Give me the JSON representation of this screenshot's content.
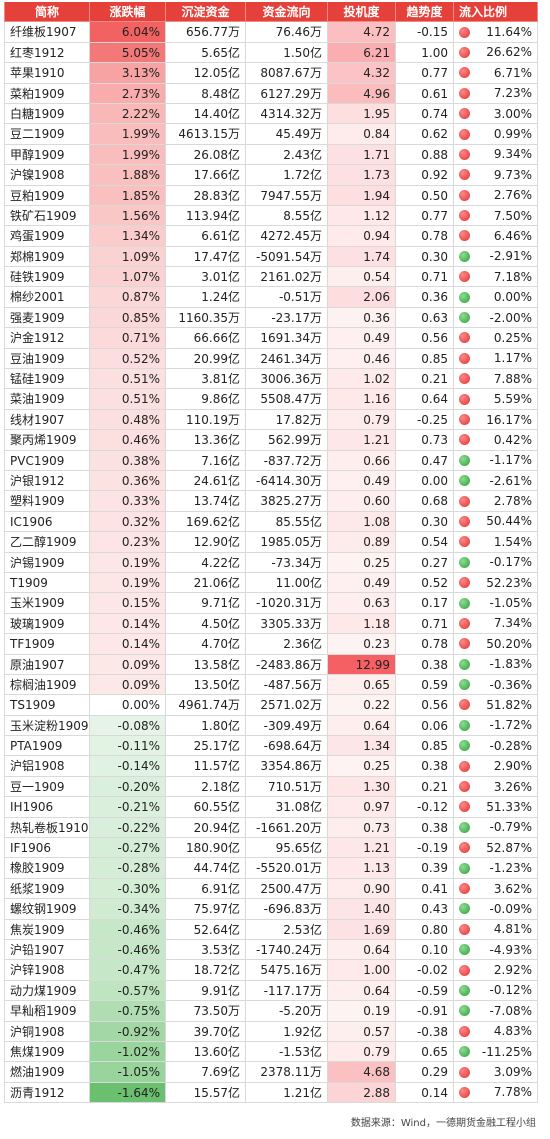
{
  "header": {
    "columns": [
      "简称",
      "涨跌幅",
      "沉淀资金",
      "资金流向",
      "投机度",
      "趋势度",
      "流入比例"
    ]
  },
  "table": {
    "rows": [
      [
        "纤维板1907",
        "6.04%",
        "656.77万",
        "76.46万",
        "4.72",
        "-0.15",
        "11.64%"
      ],
      [
        "红枣1912",
        "5.05%",
        "5.65亿",
        "1.50亿",
        "6.21",
        "1.00",
        "26.62%"
      ],
      [
        "苹果1910",
        "3.13%",
        "12.05亿",
        "8087.67万",
        "4.32",
        "0.77",
        "6.71%"
      ],
      [
        "菜粕1909",
        "2.73%",
        "8.48亿",
        "6127.29万",
        "4.96",
        "0.61",
        "7.23%"
      ],
      [
        "白糖1909",
        "2.22%",
        "14.40亿",
        "4314.32万",
        "1.95",
        "0.74",
        "3.00%"
      ],
      [
        "豆二1909",
        "1.99%",
        "4613.15万",
        "45.49万",
        "0.84",
        "0.62",
        "0.99%"
      ],
      [
        "甲醇1909",
        "1.99%",
        "26.08亿",
        "2.43亿",
        "1.71",
        "0.88",
        "9.34%"
      ],
      [
        "沪镍1908",
        "1.88%",
        "17.66亿",
        "1.72亿",
        "1.73",
        "0.92",
        "9.73%"
      ],
      [
        "豆粕1909",
        "1.85%",
        "28.83亿",
        "7947.55万",
        "1.94",
        "0.50",
        "2.76%"
      ],
      [
        "铁矿石1909",
        "1.56%",
        "113.94亿",
        "8.55亿",
        "1.12",
        "0.77",
        "7.50%"
      ],
      [
        "鸡蛋1909",
        "1.34%",
        "6.61亿",
        "4272.45万",
        "0.94",
        "0.78",
        "6.46%"
      ],
      [
        "郑棉1909",
        "1.09%",
        "17.47亿",
        "-5091.54万",
        "1.74",
        "0.30",
        "-2.91%"
      ],
      [
        "硅铁1909",
        "1.07%",
        "3.01亿",
        "2161.02万",
        "0.54",
        "0.71",
        "7.18%"
      ],
      [
        "棉纱2001",
        "0.87%",
        "1.24亿",
        "-0.51万",
        "2.06",
        "0.36",
        "0.00%"
      ],
      [
        "强麦1909",
        "0.85%",
        "1160.35万",
        "-23.17万",
        "0.36",
        "0.63",
        "-2.00%"
      ],
      [
        "沪金1912",
        "0.71%",
        "66.66亿",
        "1691.34万",
        "0.49",
        "0.56",
        "0.25%"
      ],
      [
        "豆油1909",
        "0.52%",
        "20.99亿",
        "2461.34万",
        "0.46",
        "0.85",
        "1.17%"
      ],
      [
        "锰硅1909",
        "0.51%",
        "3.81亿",
        "3006.36万",
        "1.02",
        "0.21",
        "7.88%"
      ],
      [
        "菜油1909",
        "0.51%",
        "9.86亿",
        "5508.47万",
        "1.16",
        "0.64",
        "5.59%"
      ],
      [
        "线材1907",
        "0.48%",
        "110.19万",
        "17.82万",
        "0.79",
        "-0.25",
        "16.17%"
      ],
      [
        "聚丙烯1909",
        "0.46%",
        "13.36亿",
        "562.99万",
        "1.21",
        "0.73",
        "0.42%"
      ],
      [
        "PVC1909",
        "0.38%",
        "7.16亿",
        "-837.72万",
        "0.66",
        "0.47",
        "-1.17%"
      ],
      [
        "沪银1912",
        "0.36%",
        "24.61亿",
        "-6414.30万",
        "0.49",
        "0.00",
        "-2.61%"
      ],
      [
        "塑料1909",
        "0.33%",
        "13.74亿",
        "3825.27万",
        "0.60",
        "0.68",
        "2.78%"
      ],
      [
        "IC1906",
        "0.32%",
        "169.62亿",
        "85.55亿",
        "1.08",
        "0.30",
        "50.44%"
      ],
      [
        "乙二醇1909",
        "0.23%",
        "12.90亿",
        "1985.05万",
        "0.89",
        "0.54",
        "1.54%"
      ],
      [
        "沪锡1909",
        "0.19%",
        "4.22亿",
        "-73.34万",
        "0.25",
        "0.27",
        "-0.17%"
      ],
      [
        "T1909",
        "0.19%",
        "21.06亿",
        "11.00亿",
        "0.49",
        "0.52",
        "52.23%"
      ],
      [
        "玉米1909",
        "0.15%",
        "9.71亿",
        "-1020.31万",
        "0.63",
        "0.17",
        "-1.05%"
      ],
      [
        "玻璃1909",
        "0.14%",
        "4.50亿",
        "3305.33万",
        "1.18",
        "0.71",
        "7.34%"
      ],
      [
        "TF1909",
        "0.14%",
        "4.70亿",
        "2.36亿",
        "0.23",
        "0.78",
        "50.20%"
      ],
      [
        "原油1907",
        "0.09%",
        "13.58亿",
        "-2483.86万",
        "12.99",
        "0.38",
        "-1.83%"
      ],
      [
        "棕榈油1909",
        "0.09%",
        "13.50亿",
        "-487.56万",
        "0.65",
        "0.59",
        "-0.36%"
      ],
      [
        "TS1909",
        "0.00%",
        "4961.74万",
        "2571.02万",
        "0.22",
        "0.56",
        "51.82%"
      ],
      [
        "玉米淀粉1909",
        "-0.08%",
        "1.80亿",
        "-309.49万",
        "0.64",
        "0.06",
        "-1.72%"
      ],
      [
        "PTA1909",
        "-0.11%",
        "25.17亿",
        "-698.64万",
        "1.34",
        "0.85",
        "-0.28%"
      ],
      [
        "沪铝1908",
        "-0.14%",
        "11.57亿",
        "3354.86万",
        "0.25",
        "0.38",
        "2.90%"
      ],
      [
        "豆一1909",
        "-0.20%",
        "2.18亿",
        "710.51万",
        "1.30",
        "0.21",
        "3.26%"
      ],
      [
        "IH1906",
        "-0.21%",
        "60.55亿",
        "31.08亿",
        "0.97",
        "-0.12",
        "51.33%"
      ],
      [
        "热轧卷板1910",
        "-0.22%",
        "20.94亿",
        "-1661.20万",
        "0.73",
        "0.38",
        "-0.79%"
      ],
      [
        "IF1906",
        "-0.27%",
        "180.90亿",
        "95.65亿",
        "1.21",
        "-0.19",
        "52.87%"
      ],
      [
        "橡胶1909",
        "-0.28%",
        "44.74亿",
        "-5520.01万",
        "1.13",
        "0.39",
        "-1.23%"
      ],
      [
        "纸浆1909",
        "-0.30%",
        "6.91亿",
        "2500.47万",
        "0.90",
        "0.41",
        "3.62%"
      ],
      [
        "螺纹钢1909",
        "-0.34%",
        "75.97亿",
        "-696.83万",
        "1.40",
        "0.43",
        "-0.09%"
      ],
      [
        "焦炭1909",
        "-0.46%",
        "52.64亿",
        "2.53亿",
        "1.69",
        "0.80",
        "4.81%"
      ],
      [
        "沪铅1907",
        "-0.46%",
        "3.53亿",
        "-1740.24万",
        "0.64",
        "0.10",
        "-4.93%"
      ],
      [
        "沪锌1908",
        "-0.47%",
        "18.72亿",
        "5475.16万",
        "1.00",
        "-0.02",
        "2.92%"
      ],
      [
        "动力煤1909",
        "-0.57%",
        "9.91亿",
        "-117.17万",
        "0.64",
        "-0.59",
        "-0.12%"
      ],
      [
        "早籼稻1909",
        "-0.75%",
        "73.50万",
        "-5.20万",
        "0.19",
        "-0.91",
        "-7.08%"
      ],
      [
        "沪铜1908",
        "-0.92%",
        "39.70亿",
        "1.92亿",
        "0.57",
        "-0.38",
        "4.83%"
      ],
      [
        "焦煤1909",
        "-1.02%",
        "13.60亿",
        "-1.53亿",
        "0.79",
        "0.65",
        "-11.25%"
      ],
      [
        "燃油1909",
        "-1.05%",
        "7.69亿",
        "2378.11万",
        "4.68",
        "0.29",
        "3.09%"
      ],
      [
        "沥青1912",
        "-1.64%",
        "15.57亿",
        "1.21亿",
        "2.88",
        "0.14",
        "7.78%"
      ]
    ]
  },
  "footer": "数据来源：Wind，一德期货金融工程小组"
}
